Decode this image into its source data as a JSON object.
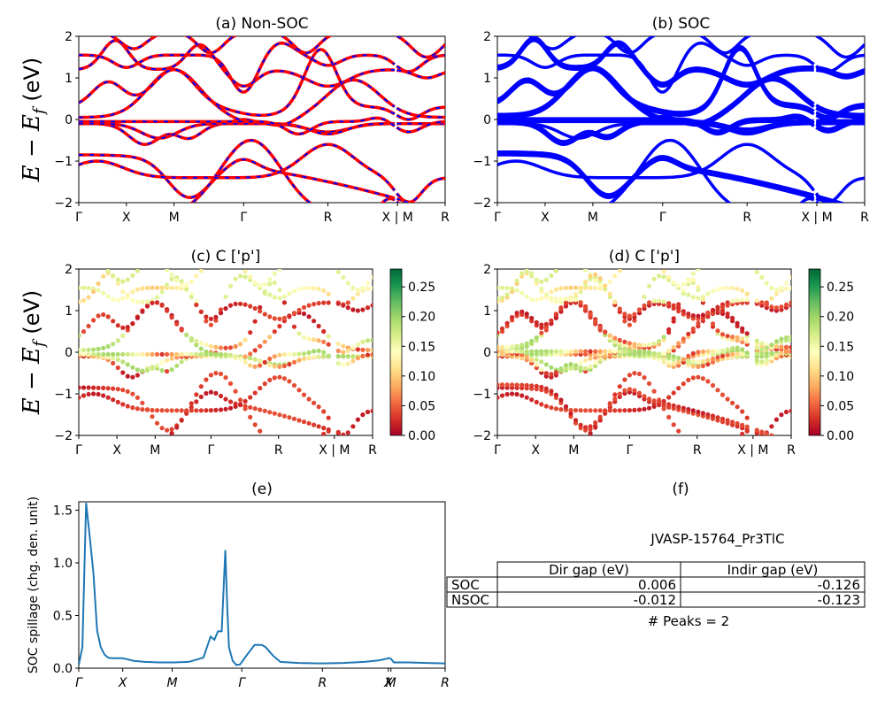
{
  "figure": {
    "y_axis_label": "E − E_f (eV)",
    "y_axis_label_parts": {
      "main": "E − E",
      "sub": "f",
      "unit": "(eV)"
    },
    "kpath_labels": [
      "Γ",
      "X",
      "M",
      "Γ",
      "R",
      "X | M",
      "R"
    ],
    "kpath_labels_italic": [
      "Γ",
      "X",
      "M",
      "Γ",
      "R",
      "X",
      "M",
      "R"
    ],
    "colors": {
      "non_soc_red": "#ff0000",
      "non_soc_blue": "#0000ff",
      "soc_blue": "#0000ff",
      "spillage_line": "#1f77b4"
    }
  },
  "chart_data": [
    {
      "id": "a",
      "type": "line",
      "title": "(a) Non-SOC",
      "ylabel": "E − E_f (eV)",
      "ylim": [
        -2,
        2
      ],
      "yticks": [
        "2",
        "1",
        "0",
        "−1",
        "−2"
      ],
      "xticks": [
        "Γ",
        "X",
        "M",
        "Γ",
        "R",
        "X | M",
        "R"
      ],
      "kpoints": [
        0,
        0.13,
        0.26,
        0.45,
        0.68,
        0.87,
        1.0
      ],
      "style": "red bands with blue dashes"
    },
    {
      "id": "b",
      "type": "line",
      "title": "(b) SOC",
      "ylim": [
        -2,
        2
      ],
      "yticks": [
        "2",
        "1",
        "0",
        "−1",
        "−2"
      ],
      "xticks": [
        "Γ",
        "X",
        "M",
        "Γ",
        "R",
        "X | M",
        "R"
      ],
      "kpoints": [
        0,
        0.13,
        0.26,
        0.45,
        0.68,
        0.87,
        1.0
      ],
      "style": "blue bands"
    },
    {
      "id": "c",
      "type": "scatter",
      "title": "(c)  C ['p']",
      "ylabel": "E − E_f (eV)",
      "ylim": [
        -2,
        2
      ],
      "yticks": [
        "2",
        "1",
        "0",
        "−1",
        "−2"
      ],
      "xticks": [
        "Γ",
        "X",
        "M",
        "Γ",
        "R",
        "X | M",
        "R"
      ],
      "kpoints": [
        0,
        0.13,
        0.26,
        0.45,
        0.68,
        0.87,
        1.0
      ],
      "colorbar": {
        "min": 0.0,
        "max": 0.28,
        "ticks": [
          "0.00",
          "0.05",
          "0.10",
          "0.15",
          "0.20",
          "0.25"
        ],
        "tick_values": [
          0,
          0.05,
          0.1,
          0.15,
          0.2,
          0.25
        ],
        "colormap": "RdYlGn"
      }
    },
    {
      "id": "d",
      "type": "scatter",
      "title": "(d) C ['p']",
      "ylim": [
        -2,
        2
      ],
      "yticks": [
        "2",
        "1",
        "0",
        "−1",
        "−2"
      ],
      "xticks": [
        "Γ",
        "X",
        "M",
        "Γ",
        "R",
        "X | M",
        "R"
      ],
      "kpoints": [
        0,
        0.13,
        0.26,
        0.45,
        0.68,
        0.87,
        1.0
      ],
      "colorbar": {
        "min": 0.0,
        "max": 0.28,
        "ticks": [
          "0.00",
          "0.05",
          "0.10",
          "0.15",
          "0.20",
          "0.25"
        ],
        "tick_values": [
          0,
          0.05,
          0.1,
          0.15,
          0.2,
          0.25
        ],
        "colormap": "RdYlGn"
      }
    },
    {
      "id": "e",
      "type": "line",
      "title": "(e)",
      "ylabel": "SOC spillage (chg. den. unit)",
      "ylim": [
        0,
        1.58
      ],
      "yticks": [
        "1.5",
        "1.0",
        "0.5",
        "0.0"
      ],
      "ytick_values": [
        1.5,
        1.0,
        0.5,
        0.0
      ],
      "xticks": [
        "Γ",
        "X",
        "M",
        "Γ",
        "R",
        "X",
        "M",
        "R"
      ],
      "xtick_positions": [
        0,
        0.12,
        0.255,
        0.445,
        0.665,
        0.845,
        0.852,
        1.0
      ],
      "x": [
        0,
        0.01,
        0.02,
        0.03,
        0.04,
        0.05,
        0.06,
        0.07,
        0.08,
        0.09,
        0.1,
        0.12,
        0.15,
        0.18,
        0.22,
        0.26,
        0.3,
        0.34,
        0.36,
        0.37,
        0.38,
        0.39,
        0.4,
        0.405,
        0.41,
        0.42,
        0.43,
        0.44,
        0.46,
        0.48,
        0.5,
        0.51,
        0.53,
        0.55,
        0.6,
        0.66,
        0.72,
        0.78,
        0.82,
        0.84,
        0.845,
        0.852,
        0.86,
        0.9,
        0.95,
        1.0
      ],
      "values": [
        0.03,
        0.2,
        1.57,
        1.25,
        0.9,
        0.36,
        0.2,
        0.13,
        0.1,
        0.095,
        0.095,
        0.095,
        0.07,
        0.06,
        0.055,
        0.055,
        0.06,
        0.1,
        0.3,
        0.27,
        0.35,
        0.35,
        1.12,
        0.6,
        0.2,
        0.07,
        0.03,
        0.035,
        0.13,
        0.22,
        0.22,
        0.2,
        0.12,
        0.06,
        0.05,
        0.045,
        0.05,
        0.06,
        0.075,
        0.09,
        0.095,
        0.09,
        0.055,
        0.055,
        0.05,
        0.045
      ]
    },
    {
      "id": "f",
      "type": "table",
      "title": "(f)",
      "subtitle": "JVASP-15764_Pr3TlC",
      "columns": [
        "",
        "Dir gap (eV)",
        "Indir gap (eV)"
      ],
      "rows": [
        [
          "SOC",
          "0.006",
          "-0.126"
        ],
        [
          "NSOC",
          "-0.012",
          "-0.123"
        ]
      ],
      "footer": "# Peaks = 2"
    }
  ]
}
